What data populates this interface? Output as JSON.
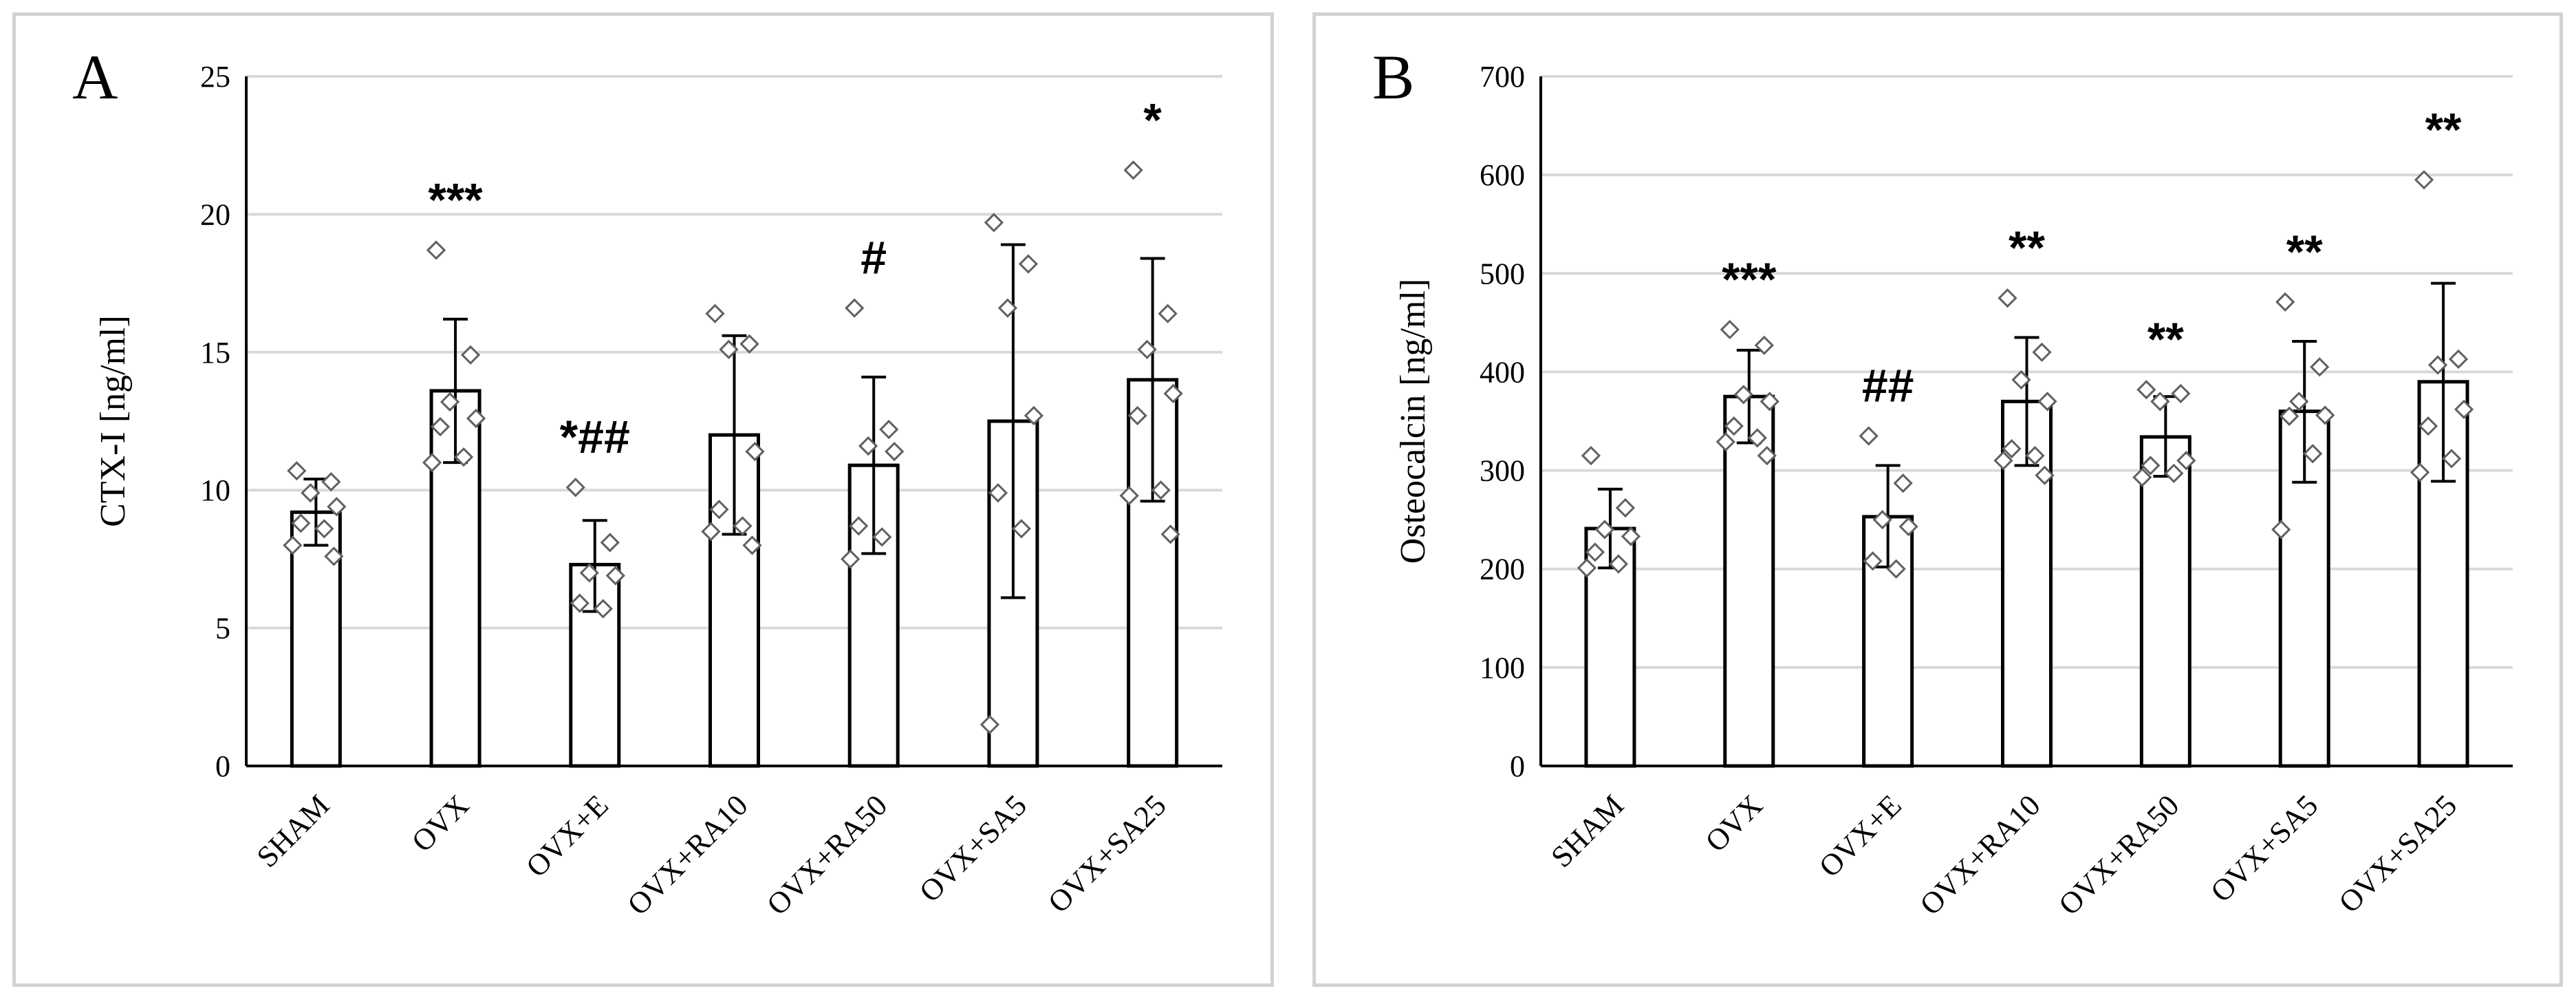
{
  "chart_data": [
    {
      "type": "bar",
      "panel_label": "A",
      "title": "",
      "xlabel": "",
      "ylabel": "CTX-I [ng/ml]",
      "ylim": [
        0,
        25
      ],
      "yticks": [
        0,
        5,
        10,
        15,
        20,
        25
      ],
      "grid": true,
      "categories": [
        "SHAM",
        "OVX",
        "OVX+E",
        "OVX+RA10",
        "OVX+RA50",
        "OVX+SA5",
        "OVX+SA25"
      ],
      "values": [
        9.2,
        13.6,
        7.3,
        12.0,
        10.9,
        12.5,
        14.0
      ],
      "error_low": [
        8.0,
        11.0,
        5.6,
        8.4,
        7.7,
        6.1,
        9.6
      ],
      "error_high": [
        10.4,
        16.2,
        8.9,
        15.6,
        14.1,
        18.9,
        18.4
      ],
      "points": [
        [
          10.7,
          10.3,
          9.9,
          9.4,
          8.8,
          8.6,
          8.0,
          7.6
        ],
        [
          18.7,
          14.9,
          13.2,
          12.6,
          12.3,
          11.2,
          11.0
        ],
        [
          10.1,
          8.1,
          7.0,
          6.9,
          5.9,
          5.7
        ],
        [
          16.4,
          15.3,
          15.1,
          11.4,
          9.3,
          8.7,
          8.5,
          8.0
        ],
        [
          16.6,
          12.2,
          11.6,
          11.4,
          8.7,
          8.3,
          7.5
        ],
        [
          19.7,
          18.2,
          16.6,
          12.7,
          9.9,
          8.6,
          1.5
        ],
        [
          21.6,
          16.4,
          15.1,
          13.5,
          12.7,
          10.0,
          9.8,
          8.4
        ]
      ],
      "annotations": [
        "",
        "***",
        "*##",
        "",
        "#",
        "",
        "*"
      ]
    },
    {
      "type": "bar",
      "panel_label": "B",
      "title": "",
      "xlabel": "",
      "ylabel": "Osteocalcin [ng/ml]",
      "ylim": [
        0,
        700
      ],
      "yticks": [
        0,
        100,
        200,
        300,
        400,
        500,
        600,
        700
      ],
      "grid": true,
      "categories": [
        "SHAM",
        "OVX",
        "OVX+E",
        "OVX+RA10",
        "OVX+RA50",
        "OVX+SA5",
        "OVX+SA25"
      ],
      "values": [
        241,
        375,
        253,
        370,
        334,
        360,
        390
      ],
      "error_low": [
        201,
        328,
        202,
        305,
        294,
        288,
        289
      ],
      "error_high": [
        281,
        422,
        305,
        435,
        375,
        431,
        490
      ],
      "points": [
        [
          315,
          262,
          240,
          233,
          217,
          205,
          201
        ],
        [
          443,
          427,
          377,
          370,
          345,
          333,
          329,
          315
        ],
        [
          335,
          287,
          250,
          243,
          208,
          200
        ],
        [
          475,
          420,
          392,
          370,
          322,
          315,
          310,
          295
        ],
        [
          382,
          378,
          370,
          310,
          305,
          297,
          293
        ],
        [
          471,
          405,
          370,
          356,
          355,
          317,
          240
        ],
        [
          595,
          413,
          407,
          362,
          345,
          312,
          298
        ]
      ],
      "annotations": [
        "",
        "***",
        "##",
        "**",
        "**",
        "**",
        "**"
      ]
    }
  ]
}
